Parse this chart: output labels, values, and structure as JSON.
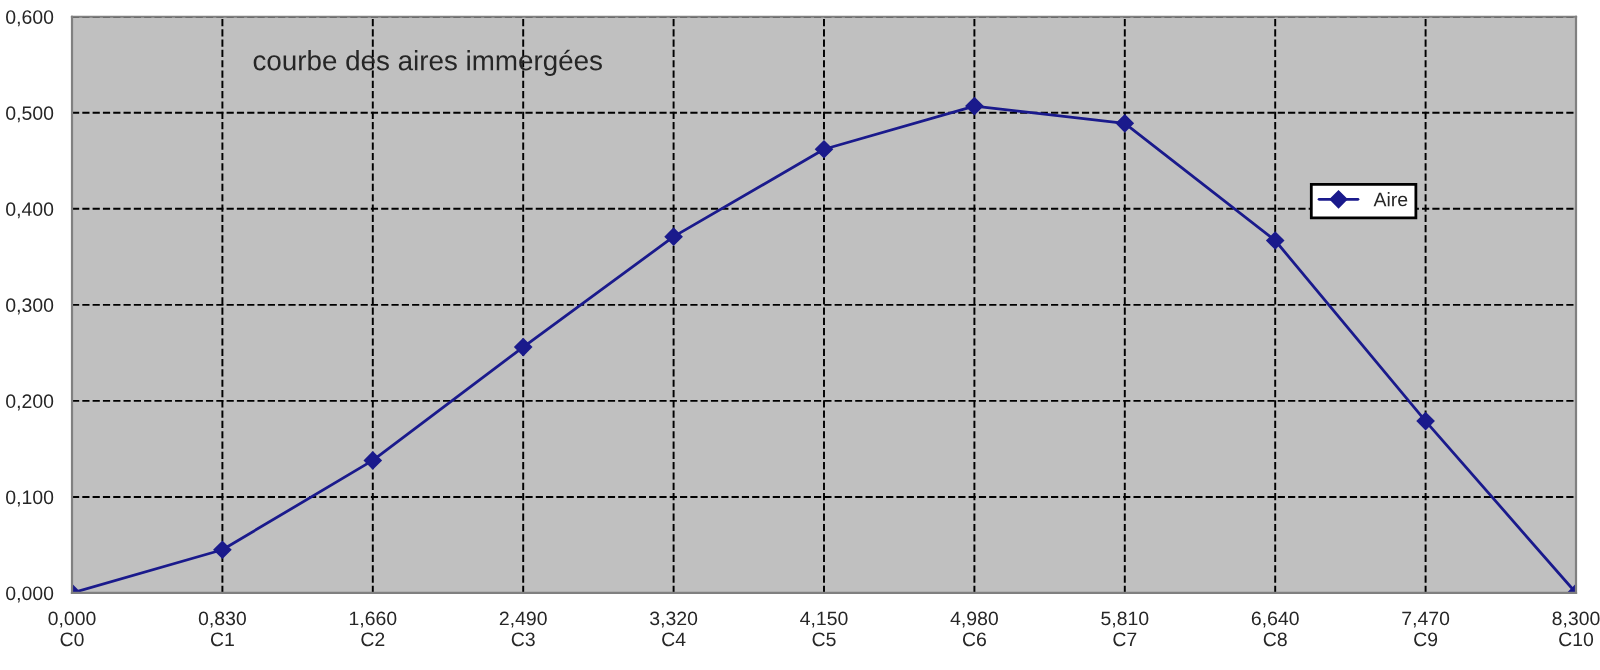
{
  "chart_data": {
    "type": "line",
    "title": "courbe des aires immergées",
    "categories": [
      "0,000\nC0",
      "0,830\nC1",
      "1,660\nC2",
      "2,490\nC3",
      "3,320\nC4",
      "4,150\nC5",
      "4,980\nC6",
      "5,810\nC7",
      "6,640\nC8",
      "7,470\nC9",
      "8,300\nC10"
    ],
    "series": [
      {
        "name": "Aire",
        "color": "#1a1a8c",
        "values": [
          0,
          0.045,
          0.138,
          0.256,
          0.371,
          0.462,
          0.507,
          0.489,
          0.367,
          0.179,
          0
        ]
      }
    ],
    "ylim": [
      0,
      0.6
    ],
    "yticks": [
      {
        "value": 0,
        "label": "0,000"
      },
      {
        "value": 0.1,
        "label": "0,100"
      },
      {
        "value": 0.2,
        "label": "0,200"
      },
      {
        "value": 0.3,
        "label": "0,300"
      },
      {
        "value": 0.4,
        "label": "0,400"
      },
      {
        "value": 0.5,
        "label": "0,500"
      },
      {
        "value": 0.6,
        "label": "0,600"
      }
    ],
    "grid": true,
    "legend": "right",
    "marker": "diamond",
    "line_style": "solid"
  }
}
